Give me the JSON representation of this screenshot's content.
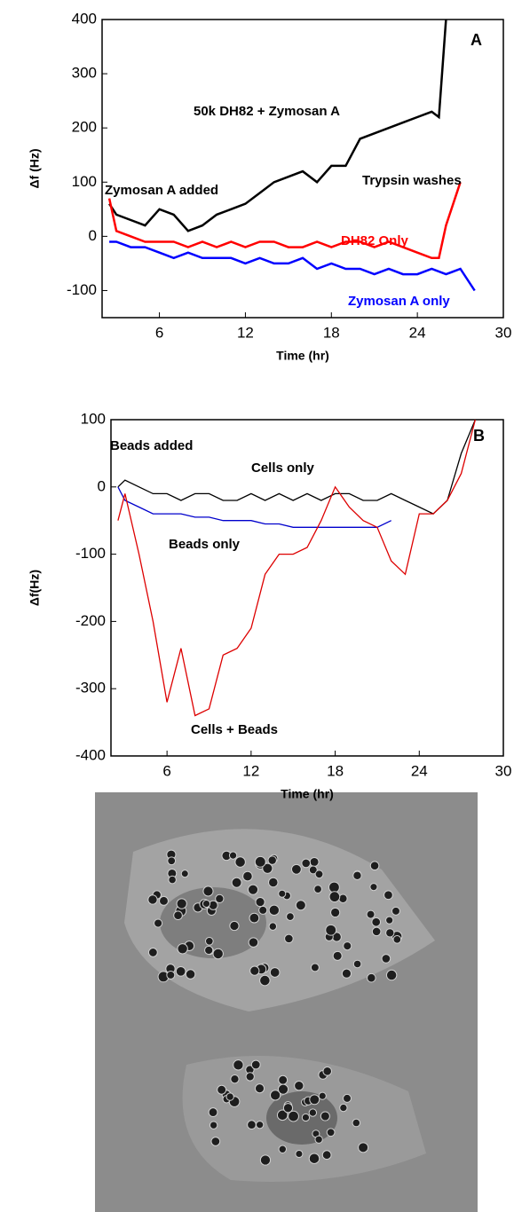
{
  "chart_data": [
    {
      "type": "line",
      "panel": "A",
      "xlabel": "Time (hr)",
      "ylabel": "Δf (Hz)",
      "xlim": [
        2,
        30
      ],
      "xticks": [
        6,
        12,
        18,
        24,
        30
      ],
      "ylim": [
        -150,
        400
      ],
      "yticks": [
        -100,
        0,
        100,
        200,
        300,
        400
      ],
      "annotations": [
        "Zymosan A  added",
        "Trypsin washes"
      ],
      "series": [
        {
          "name": "50k DH82 + Zymosan A",
          "color": "#000000",
          "x": [
            2.5,
            3,
            4,
            5,
            6,
            7,
            8,
            9,
            10,
            11,
            12,
            13,
            14,
            15,
            16,
            17,
            18,
            19,
            20,
            21,
            22,
            23,
            24,
            25,
            25.5,
            26
          ],
          "values": [
            60,
            40,
            30,
            20,
            50,
            40,
            10,
            20,
            40,
            50,
            60,
            80,
            100,
            110,
            120,
            100,
            130,
            130,
            180,
            190,
            200,
            210,
            220,
            230,
            220,
            400
          ]
        },
        {
          "name": "DH82 Only",
          "color": "#ff0000",
          "x": [
            2.5,
            3,
            4,
            5,
            6,
            7,
            8,
            9,
            10,
            11,
            12,
            13,
            14,
            15,
            16,
            17,
            18,
            19,
            20,
            21,
            22,
            23,
            24,
            25,
            25.5,
            26,
            26.5,
            27
          ],
          "values": [
            70,
            10,
            0,
            -10,
            -10,
            -10,
            -20,
            -10,
            -20,
            -10,
            -20,
            -10,
            -10,
            -20,
            -20,
            -10,
            -20,
            -10,
            -10,
            -20,
            -10,
            -20,
            -30,
            -40,
            -40,
            20,
            60,
            100
          ]
        },
        {
          "name": "Zymosan A only",
          "color": "#0000ff",
          "x": [
            2.5,
            3,
            4,
            5,
            6,
            7,
            8,
            9,
            10,
            11,
            12,
            13,
            14,
            15,
            16,
            17,
            18,
            19,
            20,
            21,
            22,
            23,
            24,
            25,
            26,
            27,
            28
          ],
          "values": [
            -10,
            -10,
            -20,
            -20,
            -30,
            -40,
            -30,
            -40,
            -40,
            -40,
            -50,
            -40,
            -50,
            -50,
            -40,
            -60,
            -50,
            -60,
            -60,
            -70,
            -60,
            -70,
            -70,
            -60,
            -70,
            -60,
            -100
          ]
        }
      ]
    },
    {
      "type": "line",
      "panel": "B",
      "xlabel": "Time (hr)",
      "ylabel": "Δf(Hz)",
      "xlim": [
        2,
        30
      ],
      "xticks": [
        6,
        12,
        18,
        24,
        30
      ],
      "ylim": [
        -400,
        100
      ],
      "yticks": [
        -400,
        -300,
        -200,
        -100,
        0,
        100
      ],
      "annotations": [
        "Beads added"
      ],
      "series": [
        {
          "name": "Cells only",
          "color": "#000000",
          "x": [
            2.5,
            3,
            4,
            5,
            6,
            7,
            8,
            9,
            10,
            11,
            12,
            13,
            14,
            15,
            16,
            17,
            18,
            19,
            20,
            21,
            22,
            23,
            24,
            25,
            26,
            27,
            28
          ],
          "values": [
            0,
            10,
            0,
            -10,
            -10,
            -20,
            -10,
            -10,
            -20,
            -20,
            -10,
            -20,
            -10,
            -20,
            -10,
            -20,
            -10,
            -10,
            -20,
            -20,
            -10,
            -20,
            -30,
            -40,
            -20,
            50,
            100
          ]
        },
        {
          "name": "Beads only",
          "color": "#0000cc",
          "x": [
            2.5,
            3,
            4,
            5,
            6,
            7,
            8,
            9,
            10,
            11,
            12,
            13,
            14,
            15,
            16,
            17,
            18,
            19,
            20,
            21,
            22
          ],
          "values": [
            0,
            -20,
            -30,
            -40,
            -40,
            -40,
            -45,
            -45,
            -50,
            -50,
            -50,
            -55,
            -55,
            -60,
            -60,
            -60,
            -60,
            -60,
            -60,
            -60,
            -50
          ]
        },
        {
          "name": "Cells + Beads",
          "color": "#dd0000",
          "x": [
            2.5,
            3,
            4,
            5,
            6,
            7,
            8,
            9,
            10,
            11,
            12,
            13,
            14,
            15,
            16,
            17,
            18,
            19,
            20,
            21,
            22,
            23,
            24,
            25,
            26,
            27,
            28
          ],
          "values": [
            -50,
            -10,
            -100,
            -200,
            -320,
            -240,
            -340,
            -330,
            -250,
            -240,
            -210,
            -130,
            -100,
            -100,
            -90,
            -50,
            0,
            -30,
            -50,
            -60,
            -110,
            -130,
            -40,
            -40,
            -20,
            20,
            100
          ]
        }
      ]
    }
  ]
}
